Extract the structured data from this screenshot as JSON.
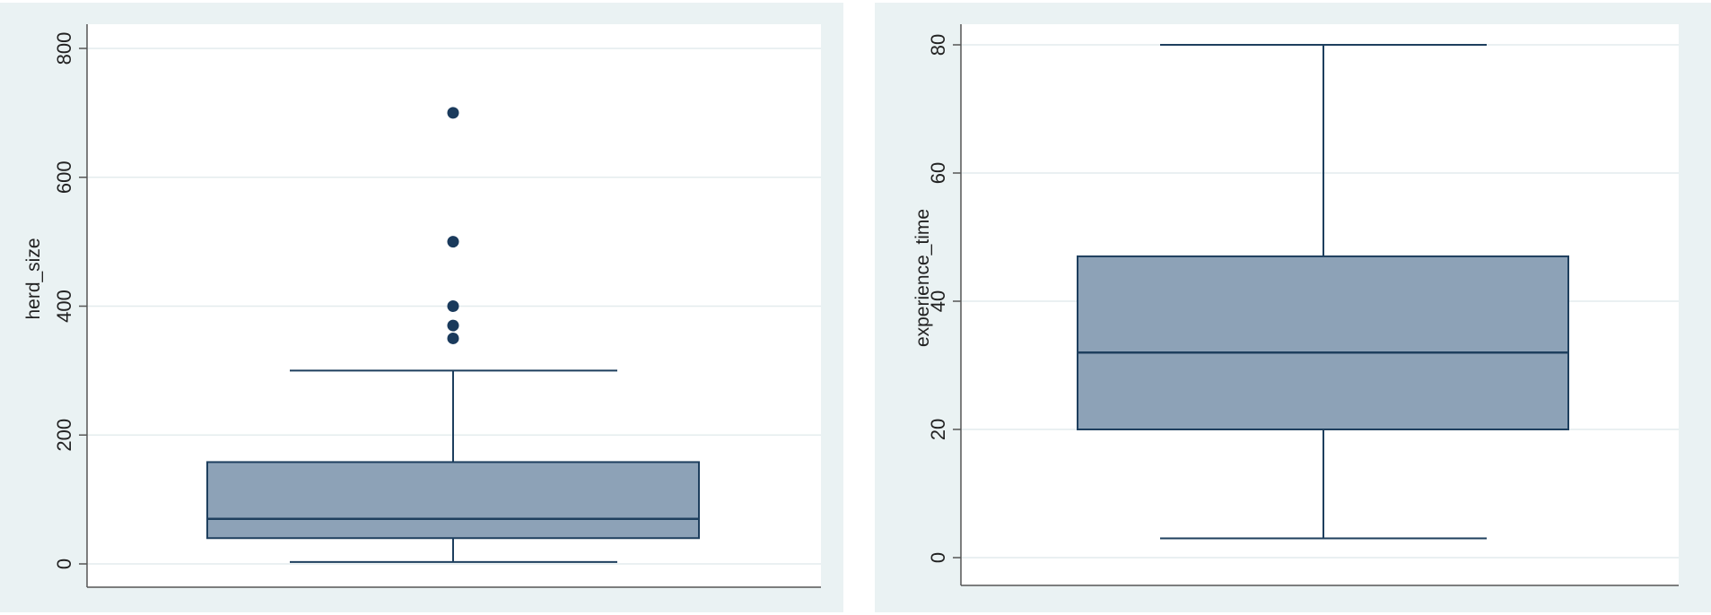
{
  "colors": {
    "panel_bg": "#eaf2f3",
    "plot_bg": "#ffffff",
    "box_fill": "#8da2b7",
    "box_stroke": "#1e3f5e",
    "outlier": "#1a3a5c",
    "grid": "#e4ecee",
    "axis": "#555555"
  },
  "chart_data": [
    {
      "type": "box",
      "ylabel": "herd_size",
      "ylim": [
        0,
        840
      ],
      "yticks": [
        0,
        200,
        400,
        600,
        800
      ],
      "ytick_labels": [
        "0",
        "200",
        "400",
        "600",
        "800"
      ],
      "grid": true,
      "box": {
        "whisker_low": 3,
        "q1": 40,
        "median": 70,
        "q3": 158,
        "whisker_high": 300
      },
      "outliers": [
        350,
        370,
        400,
        500,
        700
      ]
    },
    {
      "type": "box",
      "ylabel": "experience_time",
      "ylim": [
        0,
        83
      ],
      "yticks": [
        0,
        20,
        40,
        60,
        80
      ],
      "ytick_labels": [
        "0",
        "20",
        "40",
        "60",
        "80"
      ],
      "grid": true,
      "box": {
        "whisker_low": 3,
        "q1": 20,
        "median": 32,
        "q3": 47,
        "whisker_high": 80
      },
      "outliers": []
    }
  ]
}
